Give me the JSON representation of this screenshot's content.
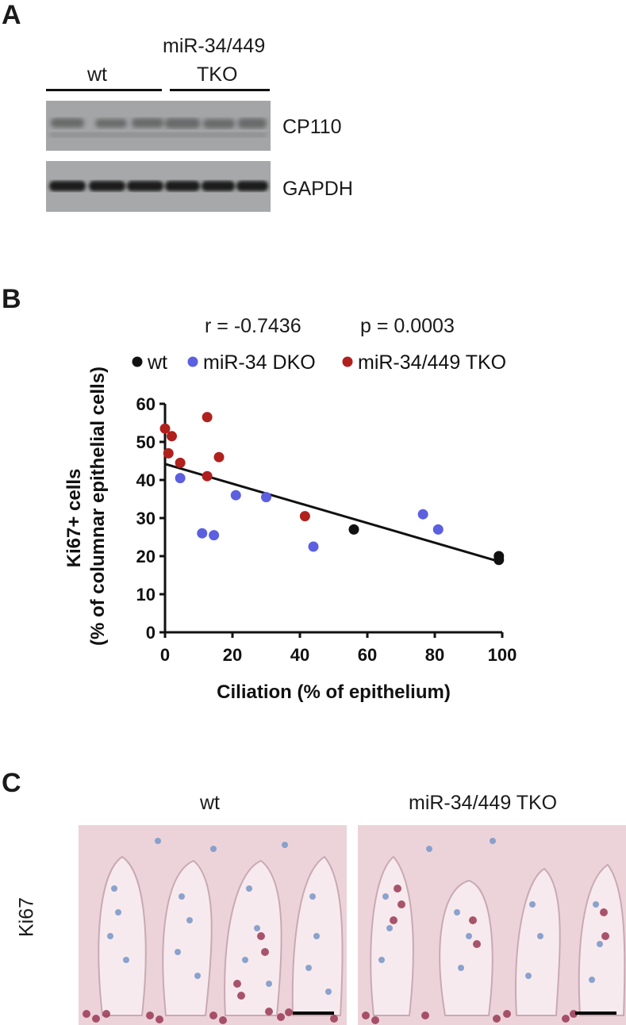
{
  "panel_a": {
    "letter": "A",
    "groups": [
      {
        "label": "wt"
      },
      {
        "label_line1": "miR-34/449",
        "label_line2": "TKO"
      }
    ],
    "bands": [
      "CP110",
      "GAPDH"
    ]
  },
  "panel_b": {
    "letter": "B",
    "stats": {
      "r": "r = -0.7436",
      "p": "p = 0.0003"
    },
    "colors": {
      "wt": "#111111",
      "dko": "#5b5fe0",
      "tko": "#b0201c"
    }
  },
  "chart_data": {
    "type": "scatter",
    "title": "",
    "xlabel": "Ciliation (% of epithelium)",
    "ylabel_line1": "Ki67+ cells",
    "ylabel_line2": "(% of columnar epithelial cells)",
    "xlim": [
      0,
      100
    ],
    "ylim": [
      0,
      60
    ],
    "xticks": [
      0,
      20,
      40,
      60,
      80,
      100
    ],
    "yticks": [
      0,
      10,
      20,
      30,
      40,
      50,
      60
    ],
    "legend_position": "top",
    "grid": false,
    "series": [
      {
        "name": "wt",
        "color": "#111111",
        "points": [
          [
            56,
            27
          ],
          [
            99,
            20
          ],
          [
            99,
            19
          ]
        ]
      },
      {
        "name": "miR-34 DKO",
        "color": "#5b5fe0",
        "points": [
          [
            4.5,
            40.5
          ],
          [
            11,
            26
          ],
          [
            14.5,
            25.5
          ],
          [
            21,
            36
          ],
          [
            30,
            35.5
          ],
          [
            44,
            22.5
          ],
          [
            76.5,
            31
          ],
          [
            81,
            27
          ]
        ]
      },
      {
        "name": "miR-34/449 TKO",
        "color": "#b0201c",
        "points": [
          [
            0,
            53.5
          ],
          [
            2,
            51.5
          ],
          [
            1,
            47
          ],
          [
            4.5,
            44.5
          ],
          [
            12.5,
            56.5
          ],
          [
            12.5,
            41
          ],
          [
            16,
            46
          ],
          [
            41.5,
            30.5
          ]
        ]
      }
    ],
    "regression": {
      "x": [
        0,
        99
      ],
      "y": [
        44.2,
        18.6
      ]
    }
  },
  "panel_c": {
    "letter": "C",
    "titles": [
      "wt",
      "miR-34/449 TKO"
    ],
    "row_label": "Ki67"
  }
}
